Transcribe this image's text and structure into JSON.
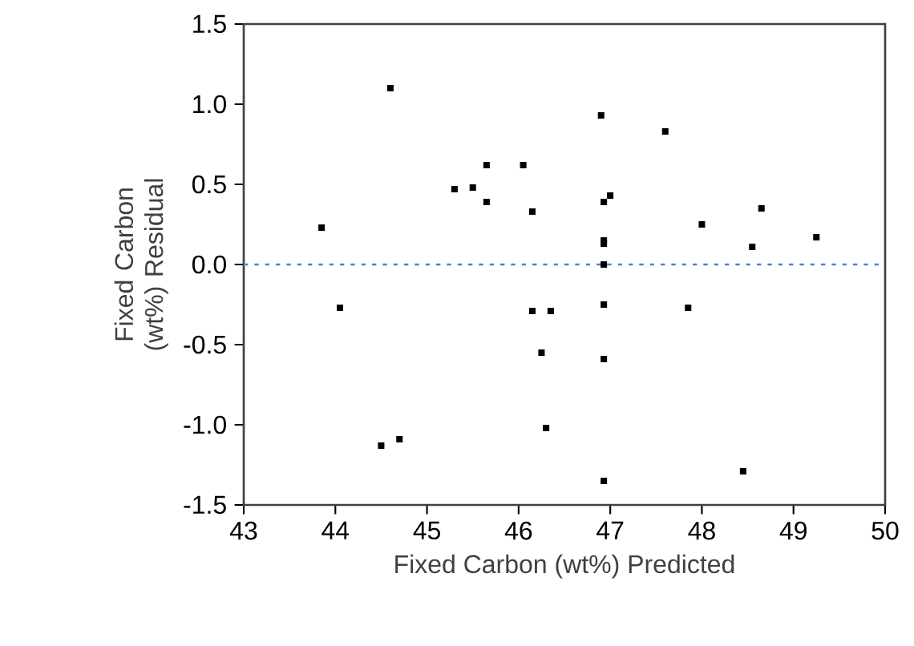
{
  "chart_data": {
    "type": "scatter",
    "xlabel": "Fixed Carbon (wt%) Predicted",
    "ylabel": "Fixed Carbon (wt%) Residual",
    "x": [
      43.85,
      44.6,
      45.3,
      45.5,
      45.65,
      45.65,
      46.05,
      46.15,
      46.9,
      46.93,
      47.0,
      46.93,
      46.93,
      46.93,
      47.6,
      48.0,
      48.55,
      48.65,
      49.25,
      44.05,
      46.15,
      46.35,
      46.93,
      47.85,
      46.25,
      46.93,
      46.3,
      44.5,
      44.7,
      46.93,
      48.45
    ],
    "values": [
      0.23,
      1.1,
      0.47,
      0.48,
      0.62,
      0.39,
      0.62,
      0.33,
      0.93,
      0.39,
      0.43,
      0.15,
      0.13,
      0.0,
      0.83,
      0.25,
      0.11,
      0.35,
      0.17,
      -0.27,
      -0.29,
      -0.29,
      -0.25,
      -0.27,
      -0.55,
      -0.59,
      -1.02,
      -1.13,
      -1.09,
      -1.35,
      -1.29
    ],
    "color": "#000000",
    "marker": "square",
    "xlim": [
      43,
      50
    ],
    "xticks": [
      43,
      44,
      45,
      46,
      47,
      48,
      49,
      50
    ],
    "ylim": [
      -1.5,
      1.5
    ],
    "yticks": [
      -1.5,
      {
        "value": -1,
        "label": "-1.0"
      },
      -0.5,
      {
        "value": 0,
        "label": "0.0"
      },
      0.5,
      {
        "value": 1,
        "label": "1.0"
      },
      1.5
    ],
    "ref_lines": [
      {
        "axis": "y",
        "value": 0,
        "color": "#4a7fe0",
        "line_style": "dashed"
      }
    ],
    "grid": false
  }
}
